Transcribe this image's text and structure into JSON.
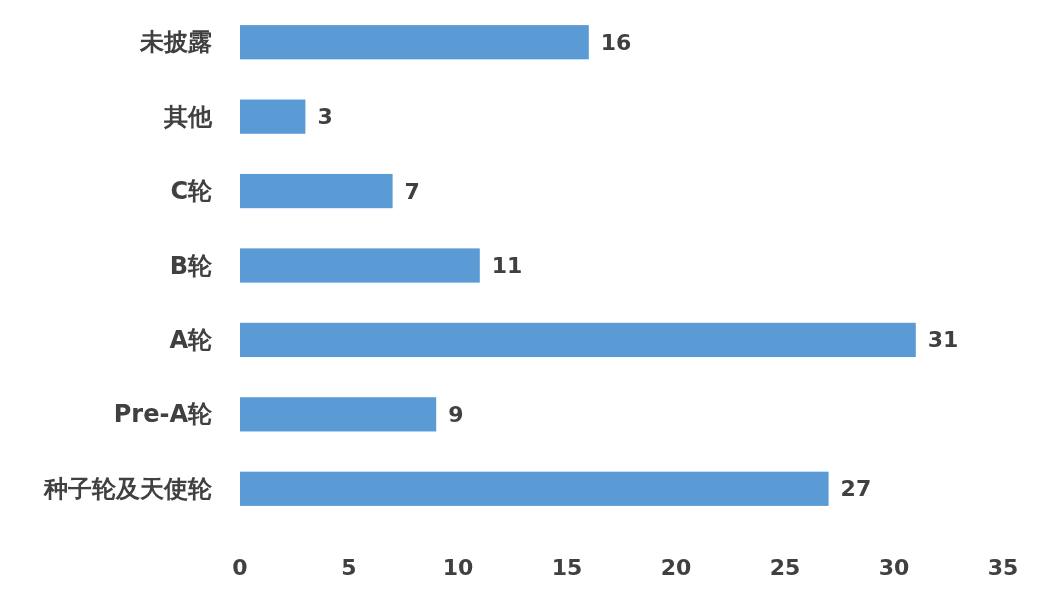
{
  "chart_data": {
    "type": "bar",
    "orientation": "horizontal",
    "categories": [
      "未披露",
      "其他",
      "C轮",
      "B轮",
      "A轮",
      "Pre-A轮",
      "种子轮及天使轮"
    ],
    "values": [
      16,
      3,
      7,
      11,
      31,
      9,
      27
    ],
    "color": "#5b9bd5",
    "xlim": [
      0,
      35
    ],
    "xticks": [
      0,
      5,
      10,
      15,
      20,
      25,
      30,
      35
    ],
    "data_labels": true
  }
}
